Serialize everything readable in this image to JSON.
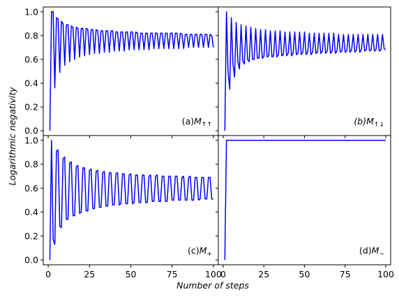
{
  "chart_data": {
    "type": "line",
    "xlabel": "Number of steps",
    "ylabel": "Logarithmic negativity",
    "xlim": [
      -3,
      103
    ],
    "ylim": [
      -0.04,
      1.04
    ],
    "x_ticks": [
      "0",
      "25",
      "50",
      "75",
      "100"
    ],
    "y_ticks": [
      "0.0",
      "0.2",
      "0.4",
      "0.6",
      "0.8",
      "1.0"
    ],
    "line_color": "#0000ff",
    "grid": false,
    "panels": [
      {
        "id": "a",
        "label_prefix": "(a)",
        "label_symbol": "M",
        "label_sub": "↑↑",
        "label_prefix_italic": false,
        "series": {
          "x": [
            1,
            2,
            3,
            4,
            5,
            6,
            7,
            8,
            9,
            10,
            11,
            12,
            13,
            14,
            15,
            16,
            17,
            18,
            19,
            20,
            21,
            22,
            23,
            24,
            25,
            26,
            27,
            28,
            29,
            30,
            31,
            32,
            33,
            34,
            35,
            36,
            37,
            38,
            39,
            40,
            41,
            42,
            43,
            44,
            45,
            46,
            47,
            48,
            49,
            50,
            51,
            52,
            53,
            54,
            55,
            56,
            57,
            58,
            59,
            60,
            61,
            62,
            63,
            64,
            65,
            66,
            67,
            68,
            69,
            70,
            71,
            72,
            73,
            74,
            75,
            76,
            77,
            78,
            79,
            80,
            81,
            82,
            83,
            84,
            85,
            86,
            87,
            88,
            89,
            90,
            91,
            92,
            93,
            94,
            95,
            96,
            97,
            98,
            99,
            100
          ],
          "y": [
            0.0,
            1.0,
            1.0,
            0.36,
            0.95,
            0.94,
            0.49,
            0.92,
            0.9,
            0.55,
            0.89,
            0.89,
            0.58,
            0.88,
            0.87,
            0.6,
            0.87,
            0.86,
            0.62,
            0.86,
            0.86,
            0.63,
            0.86,
            0.85,
            0.64,
            0.85,
            0.85,
            0.65,
            0.85,
            0.84,
            0.65,
            0.84,
            0.84,
            0.66,
            0.84,
            0.84,
            0.66,
            0.84,
            0.84,
            0.67,
            0.83,
            0.83,
            0.67,
            0.83,
            0.83,
            0.67,
            0.83,
            0.83,
            0.68,
            0.83,
            0.83,
            0.68,
            0.83,
            0.82,
            0.68,
            0.82,
            0.82,
            0.68,
            0.82,
            0.82,
            0.68,
            0.82,
            0.82,
            0.69,
            0.82,
            0.82,
            0.69,
            0.82,
            0.82,
            0.69,
            0.82,
            0.82,
            0.69,
            0.82,
            0.82,
            0.69,
            0.82,
            0.82,
            0.69,
            0.82,
            0.81,
            0.69,
            0.81,
            0.81,
            0.7,
            0.81,
            0.81,
            0.7,
            0.81,
            0.81,
            0.7,
            0.81,
            0.81,
            0.7,
            0.81,
            0.81,
            0.7,
            0.81,
            0.8,
            0.7
          ]
        }
      },
      {
        "id": "b",
        "label_prefix": "(b)",
        "label_symbol": "M",
        "label_sub": "↑↓",
        "label_prefix_italic": true,
        "series": {
          "x": [
            1,
            2,
            3,
            4,
            5,
            6,
            7,
            8,
            9,
            10,
            11,
            12,
            13,
            14,
            15,
            16,
            17,
            18,
            19,
            20,
            21,
            22,
            23,
            24,
            25,
            26,
            27,
            28,
            29,
            30,
            31,
            32,
            33,
            34,
            35,
            36,
            37,
            38,
            39,
            40,
            41,
            42,
            43,
            44,
            45,
            46,
            47,
            48,
            49,
            50,
            51,
            52,
            53,
            54,
            55,
            56,
            57,
            58,
            59,
            60,
            61,
            62,
            63,
            64,
            65,
            66,
            67,
            68,
            69,
            70,
            71,
            72,
            73,
            74,
            75,
            76,
            77,
            78,
            79,
            80,
            81,
            82,
            83,
            84,
            85,
            86,
            87,
            88,
            89,
            90,
            91,
            92,
            93,
            94,
            95,
            96,
            97,
            98,
            99,
            100
          ],
          "y": [
            0.0,
            1.0,
            0.49,
            0.35,
            0.95,
            0.56,
            0.45,
            0.91,
            0.58,
            0.52,
            0.89,
            0.59,
            0.56,
            0.88,
            0.6,
            0.58,
            0.87,
            0.6,
            0.6,
            0.86,
            0.61,
            0.61,
            0.85,
            0.61,
            0.62,
            0.85,
            0.62,
            0.63,
            0.84,
            0.62,
            0.63,
            0.84,
            0.62,
            0.64,
            0.84,
            0.63,
            0.64,
            0.83,
            0.63,
            0.65,
            0.83,
            0.63,
            0.65,
            0.83,
            0.64,
            0.65,
            0.83,
            0.64,
            0.66,
            0.83,
            0.64,
            0.66,
            0.82,
            0.64,
            0.66,
            0.82,
            0.65,
            0.66,
            0.82,
            0.65,
            0.67,
            0.82,
            0.65,
            0.67,
            0.82,
            0.65,
            0.67,
            0.82,
            0.65,
            0.67,
            0.81,
            0.66,
            0.67,
            0.81,
            0.66,
            0.67,
            0.81,
            0.66,
            0.68,
            0.81,
            0.66,
            0.68,
            0.81,
            0.66,
            0.68,
            0.81,
            0.67,
            0.68,
            0.81,
            0.67,
            0.68,
            0.81,
            0.67,
            0.68,
            0.81,
            0.67,
            0.68,
            0.81,
            0.69,
            0.68
          ]
        }
      },
      {
        "id": "c",
        "label_prefix": "(c)",
        "label_symbol": "M",
        "label_sub": "+",
        "label_prefix_italic": false,
        "series": {
          "x": [
            1,
            2,
            3,
            4,
            5,
            6,
            7,
            8,
            9,
            10,
            11,
            12,
            13,
            14,
            15,
            16,
            17,
            18,
            19,
            20,
            21,
            22,
            23,
            24,
            25,
            26,
            27,
            28,
            29,
            30,
            31,
            32,
            33,
            34,
            35,
            36,
            37,
            38,
            39,
            40,
            41,
            42,
            43,
            44,
            45,
            46,
            47,
            48,
            49,
            50,
            51,
            52,
            53,
            54,
            55,
            56,
            57,
            58,
            59,
            60,
            61,
            62,
            63,
            64,
            65,
            66,
            67,
            68,
            69,
            70,
            71,
            72,
            73,
            74,
            75,
            76,
            77,
            78,
            79,
            80,
            81,
            82,
            83,
            84,
            85,
            86,
            87,
            88,
            89,
            90,
            91,
            92,
            93,
            94,
            95,
            96,
            97,
            98,
            99,
            100
          ],
          "y": [
            0.0,
            1.0,
            0.17,
            0.13,
            0.91,
            0.92,
            0.28,
            0.27,
            0.85,
            0.86,
            0.34,
            0.34,
            0.81,
            0.82,
            0.37,
            0.37,
            0.78,
            0.79,
            0.39,
            0.4,
            0.77,
            0.77,
            0.41,
            0.41,
            0.75,
            0.76,
            0.43,
            0.43,
            0.74,
            0.75,
            0.44,
            0.44,
            0.73,
            0.74,
            0.45,
            0.45,
            0.73,
            0.73,
            0.46,
            0.46,
            0.72,
            0.73,
            0.46,
            0.47,
            0.72,
            0.72,
            0.47,
            0.47,
            0.71,
            0.72,
            0.47,
            0.48,
            0.71,
            0.71,
            0.48,
            0.48,
            0.71,
            0.71,
            0.48,
            0.48,
            0.7,
            0.71,
            0.49,
            0.49,
            0.7,
            0.71,
            0.49,
            0.49,
            0.7,
            0.7,
            0.49,
            0.49,
            0.7,
            0.7,
            0.5,
            0.5,
            0.7,
            0.7,
            0.5,
            0.5,
            0.69,
            0.7,
            0.5,
            0.5,
            0.69,
            0.7,
            0.5,
            0.5,
            0.69,
            0.69,
            0.5,
            0.51,
            0.69,
            0.69,
            0.51,
            0.51,
            0.69,
            0.69,
            0.51,
            0.51
          ]
        }
      },
      {
        "id": "d",
        "label_prefix": "(d)",
        "label_symbol": "M",
        "label_sub": "−",
        "label_prefix_italic": false,
        "series": {
          "x": [
            1,
            2,
            3,
            100
          ],
          "y": [
            0.0,
            1.0,
            1.0,
            1.0
          ]
        }
      }
    ]
  }
}
